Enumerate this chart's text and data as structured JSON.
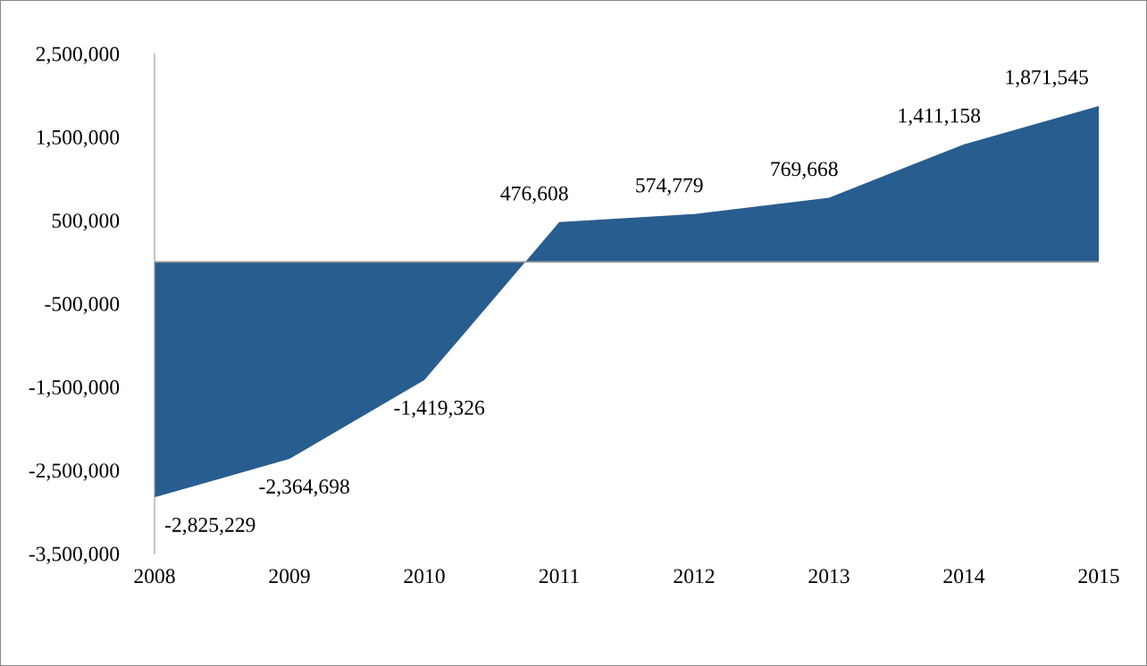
{
  "chart_data": {
    "type": "area",
    "categories": [
      "2008",
      "2009",
      "2010",
      "2011",
      "2012",
      "2013",
      "2014",
      "2015"
    ],
    "series": [
      {
        "color": "#285d8f",
        "values": [
          -2825229,
          -2364698,
          -1419326,
          476608,
          574779,
          769668,
          1411158,
          1871545
        ],
        "value_labels": [
          "-2,825,229",
          "-2,364,698",
          "-1,419,326",
          "476,608",
          "574,779",
          "769,668",
          "1,411,158",
          "1,871,545"
        ]
      }
    ],
    "ylim": [
      -3500000,
      2500000
    ],
    "yticks": [
      {
        "value": 2500000,
        "label": "2,500,000"
      },
      {
        "value": 1500000,
        "label": "1,500,000"
      },
      {
        "value": 500000,
        "label": "500,000"
      },
      {
        "value": -500000,
        "label": "-500,000"
      },
      {
        "value": -1500000,
        "label": "-1,500,000"
      },
      {
        "value": -2500000,
        "label": "-2,500,000"
      },
      {
        "value": -3500000,
        "label": "-3,500,000"
      }
    ],
    "grid": false
  }
}
